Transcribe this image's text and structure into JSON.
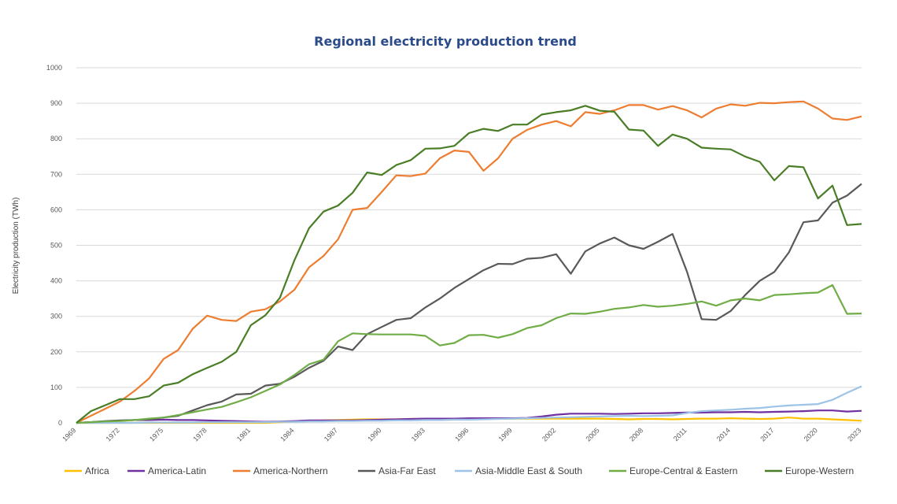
{
  "chart_data": {
    "type": "line",
    "title": "Regional electricity production trend",
    "xlabel": "",
    "ylabel": "Electricity production (TWh)",
    "ylim": [
      0,
      1000
    ],
    "y_ticks": [
      0,
      100,
      200,
      300,
      400,
      500,
      600,
      700,
      800,
      900,
      1000
    ],
    "x_tick_labels": [
      "1969",
      "1972",
      "1975",
      "1978",
      "1981",
      "1984",
      "1987",
      "1990",
      "1993",
      "1996",
      "1999",
      "2002",
      "2005",
      "2008",
      "2011",
      "2014",
      "2017",
      "2020",
      "2023"
    ],
    "grid": "horizontal",
    "legend": "bottom",
    "x": [
      1969,
      1970,
      1971,
      1972,
      1973,
      1974,
      1975,
      1976,
      1977,
      1978,
      1979,
      1980,
      1981,
      1982,
      1983,
      1984,
      1985,
      1986,
      1987,
      1988,
      1989,
      1990,
      1991,
      1992,
      1993,
      1994,
      1995,
      1996,
      1997,
      1998,
      1999,
      2000,
      2001,
      2002,
      2003,
      2004,
      2005,
      2006,
      2007,
      2008,
      2009,
      2010,
      2011,
      2012,
      2013,
      2014,
      2015,
      2016,
      2017,
      2018,
      2019,
      2020,
      2021,
      2022,
      2023
    ],
    "series": [
      {
        "name": "Africa",
        "color": "#ffc000",
        "values": [
          0,
          0,
          0,
          0,
          0,
          0,
          0,
          0,
          0,
          0,
          0,
          0,
          0,
          0,
          2,
          4,
          6,
          7,
          8,
          9,
          10,
          10,
          10,
          11,
          11,
          11,
          11,
          12,
          12,
          12,
          12,
          12,
          12,
          12,
          12,
          12,
          12,
          11,
          10,
          11,
          11,
          10,
          11,
          12,
          12,
          13,
          12,
          11,
          12,
          15,
          12,
          12,
          10,
          8,
          6
        ]
      },
      {
        "name": "America-Latin",
        "color": "#7030a0",
        "values": [
          0,
          2,
          4,
          6,
          8,
          8,
          9,
          8,
          8,
          7,
          6,
          5,
          4,
          3,
          4,
          5,
          7,
          7,
          7,
          7,
          8,
          9,
          10,
          11,
          12,
          12,
          12,
          13,
          13,
          13,
          13,
          14,
          18,
          23,
          26,
          26,
          26,
          25,
          26,
          27,
          27,
          28,
          29,
          29,
          30,
          30,
          31,
          30,
          31,
          32,
          33,
          35,
          35,
          32,
          34
        ]
      },
      {
        "name": "America-Northern",
        "color": "#ed7d31",
        "values": [
          0,
          20,
          40,
          60,
          90,
          125,
          180,
          205,
          265,
          302,
          290,
          287,
          313,
          320,
          342,
          375,
          438,
          470,
          517,
          600,
          605,
          650,
          697,
          695,
          702,
          745,
          767,
          763,
          710,
          745,
          800,
          825,
          840,
          850,
          835,
          875,
          870,
          880,
          895,
          895,
          882,
          892,
          880,
          860,
          885,
          897,
          893,
          901,
          900,
          903,
          905,
          885,
          857,
          853,
          863
        ]
      },
      {
        "name": "Asia-Far East",
        "color": "#595959",
        "values": [
          0,
          2,
          5,
          7,
          8,
          10,
          15,
          20,
          35,
          50,
          60,
          80,
          82,
          105,
          110,
          130,
          155,
          175,
          215,
          205,
          250,
          270,
          290,
          295,
          325,
          350,
          380,
          405,
          430,
          448,
          447,
          462,
          465,
          475,
          420,
          483,
          505,
          522,
          500,
          490,
          510,
          532,
          425,
          292,
          290,
          315,
          360,
          400,
          425,
          480,
          565,
          570,
          620,
          640,
          673
        ]
      },
      {
        "name": "Asia-Middle East & South",
        "color": "#9dc3e6",
        "values": [
          0,
          0,
          0,
          0,
          0,
          1,
          1,
          1,
          1,
          2,
          2,
          2,
          2,
          2,
          3,
          3,
          4,
          4,
          5,
          5,
          6,
          6,
          7,
          7,
          8,
          8,
          9,
          9,
          10,
          11,
          12,
          13,
          14,
          15,
          16,
          17,
          18,
          19,
          20,
          19,
          20,
          21,
          28,
          33,
          35,
          37,
          40,
          42,
          46,
          49,
          51,
          53,
          65,
          85,
          103
        ]
      },
      {
        "name": "Europe-Central & Eastern",
        "color": "#70ad47",
        "values": [
          0,
          2,
          4,
          5,
          8,
          12,
          15,
          22,
          30,
          38,
          45,
          58,
          72,
          90,
          108,
          135,
          165,
          178,
          230,
          252,
          250,
          249,
          249,
          249,
          245,
          218,
          225,
          247,
          248,
          240,
          250,
          267,
          275,
          295,
          308,
          307,
          313,
          321,
          325,
          332,
          327,
          330,
          335,
          342,
          330,
          345,
          350,
          345,
          360,
          362,
          365,
          367,
          388,
          307,
          308
        ]
      },
      {
        "name": "Europe-Western",
        "color": "#4a7e26",
        "values": [
          0,
          33,
          50,
          67,
          67,
          75,
          105,
          113,
          137,
          155,
          172,
          200,
          275,
          303,
          352,
          458,
          548,
          595,
          612,
          648,
          705,
          698,
          726,
          740,
          772,
          773,
          780,
          816,
          828,
          822,
          840,
          840,
          868,
          875,
          880,
          893,
          879,
          876,
          826,
          823,
          780,
          812,
          800,
          775,
          772,
          770,
          750,
          735,
          683,
          723,
          720,
          632,
          668,
          557,
          560
        ]
      }
    ]
  }
}
